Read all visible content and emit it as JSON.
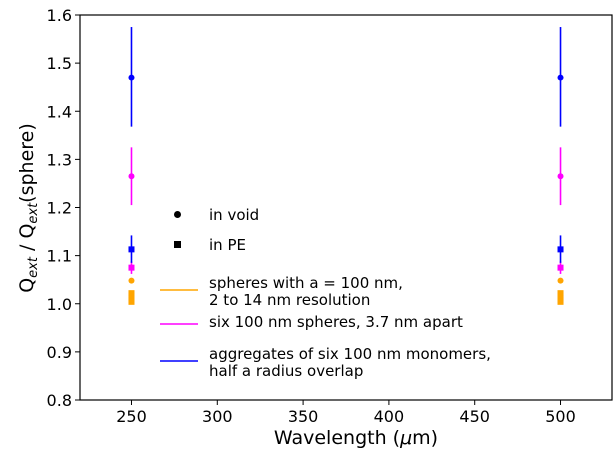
{
  "chart_data": {
    "type": "scatter",
    "xlabel_parts": {
      "main": "Wavelength (",
      "mu": "μ",
      "unit": "m)"
    },
    "ylabel_parts": {
      "q1": "Q",
      "sub1": "ext",
      "mid": " / Q",
      "sub2": "ext",
      "tail": "(sphere)"
    },
    "xlim": [
      220,
      530
    ],
    "ylim": [
      0.8,
      1.6
    ],
    "xticks": [
      250,
      300,
      350,
      400,
      450,
      500
    ],
    "xtick_labels": [
      "250",
      "300",
      "350",
      "400",
      "450",
      "500"
    ],
    "yticks": [
      0.8,
      0.9,
      1.0,
      1.1,
      1.2,
      1.3,
      1.4,
      1.5,
      1.6
    ],
    "ytick_labels": [
      "0.8",
      "0.9",
      "1.0",
      "1.1",
      "1.2",
      "1.3",
      "1.4",
      "1.5",
      "1.6"
    ],
    "grid": false,
    "legend_position": "lower-left-center",
    "legend": [
      {
        "marker": "circle",
        "lines": [
          "in void"
        ]
      },
      {
        "marker": "square",
        "lines": [
          "in PE"
        ]
      },
      {
        "color": "#ffa500",
        "lines": [
          "spheres with a = 100 nm,",
          "2 to 14 nm resolution"
        ]
      },
      {
        "color": "#ff00ff",
        "lines": [
          "six 100 nm spheres, 3.7 nm apart"
        ]
      },
      {
        "color": "#0000ff",
        "lines": [
          "aggregates of six 100 nm monomers,",
          "half a radius overlap"
        ]
      }
    ],
    "series": [
      {
        "color": "#ffa500",
        "points": [
          {
            "x": 250,
            "y": 1.048,
            "marker": "circle"
          },
          {
            "x": 250,
            "y": 1.022,
            "marker": "square"
          },
          {
            "x": 250,
            "y": 1.017,
            "marker": "square"
          },
          {
            "x": 250,
            "y": 1.012,
            "marker": "square"
          },
          {
            "x": 250,
            "y": 1.008,
            "marker": "square"
          },
          {
            "x": 250,
            "y": 1.004,
            "marker": "square"
          },
          {
            "x": 500,
            "y": 1.048,
            "marker": "circle"
          },
          {
            "x": 500,
            "y": 1.022,
            "marker": "square"
          },
          {
            "x": 500,
            "y": 1.017,
            "marker": "square"
          },
          {
            "x": 500,
            "y": 1.012,
            "marker": "square"
          },
          {
            "x": 500,
            "y": 1.008,
            "marker": "square"
          },
          {
            "x": 500,
            "y": 1.004,
            "marker": "square"
          }
        ]
      },
      {
        "color": "#ff00ff",
        "points": [
          {
            "x": 250,
            "y": 1.265,
            "marker": "circle",
            "err_low": 1.205,
            "err_high": 1.325
          },
          {
            "x": 250,
            "y": 1.075,
            "marker": "square",
            "err_low": 1.062,
            "err_high": 1.088
          },
          {
            "x": 500,
            "y": 1.265,
            "marker": "circle",
            "err_low": 1.205,
            "err_high": 1.325
          },
          {
            "x": 500,
            "y": 1.075,
            "marker": "square",
            "err_low": 1.062,
            "err_high": 1.088
          }
        ]
      },
      {
        "color": "#0000ff",
        "points": [
          {
            "x": 250,
            "y": 1.47,
            "marker": "circle",
            "err_low": 1.368,
            "err_high": 1.575
          },
          {
            "x": 250,
            "y": 1.113,
            "marker": "square",
            "err_low": 1.085,
            "err_high": 1.142
          },
          {
            "x": 500,
            "y": 1.47,
            "marker": "circle",
            "err_low": 1.368,
            "err_high": 1.575
          },
          {
            "x": 500,
            "y": 1.113,
            "marker": "square",
            "err_low": 1.085,
            "err_high": 1.142
          }
        ]
      }
    ]
  }
}
